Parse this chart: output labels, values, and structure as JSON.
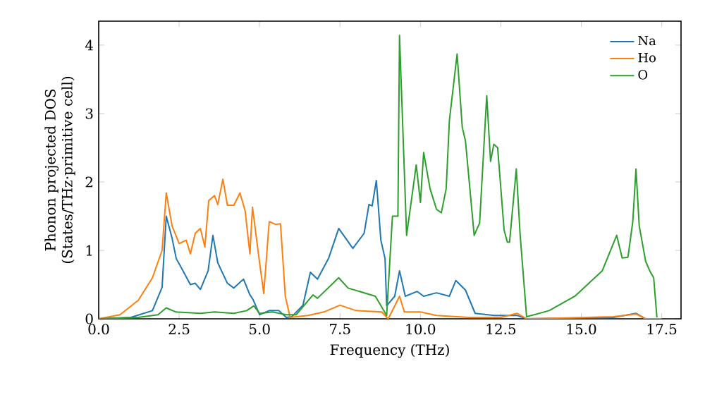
{
  "chart_data": {
    "type": "line",
    "xlabel": "Frequency (THz)",
    "ylabel": "Phonon projected DOS (States/THz·primitive cell)",
    "xlim": [
      0,
      18.1
    ],
    "ylim": [
      0,
      4.35
    ],
    "xticks": [
      {
        "value": 0,
        "label": "0.0"
      },
      {
        "value": 2.5,
        "label": "2.5"
      },
      {
        "value": 5,
        "label": "5.0"
      },
      {
        "value": 7.5,
        "label": "7.5"
      },
      {
        "value": 10,
        "label": "10.0"
      },
      {
        "value": 12.5,
        "label": "12.5"
      },
      {
        "value": 15,
        "label": "15.0"
      },
      {
        "value": 17.5,
        "label": "17.5"
      }
    ],
    "yticks": [
      0,
      1,
      2,
      3,
      4
    ],
    "legend": "top right",
    "series": [
      {
        "name": "Na",
        "color": "#1f77b4",
        "x": [
          0,
          1.0,
          1.67,
          1.97,
          2.1,
          2.28,
          2.41,
          2.6,
          2.85,
          3.0,
          3.16,
          3.4,
          3.55,
          3.7,
          4.0,
          4.2,
          4.5,
          4.7,
          4.8,
          5.0,
          5.3,
          5.6,
          5.83,
          6.0,
          6.35,
          6.58,
          6.8,
          7.15,
          7.46,
          7.9,
          8.25,
          8.4,
          8.5,
          8.63,
          8.77,
          8.9,
          8.95,
          9.2,
          9.35,
          9.53,
          9.9,
          10.1,
          10.5,
          10.9,
          11.1,
          11.4,
          11.7,
          12.3,
          13.0,
          13.3,
          16.0,
          16.7,
          17.0,
          17.5
        ],
        "values": [
          0,
          0.02,
          0.12,
          0.46,
          1.5,
          1.18,
          0.88,
          0.72,
          0.5,
          0.52,
          0.43,
          0.7,
          1.22,
          0.82,
          0.52,
          0.45,
          0.58,
          0.35,
          0.28,
          0.06,
          0.12,
          0.12,
          0.02,
          0.03,
          0.2,
          0.68,
          0.58,
          0.89,
          1.32,
          1.03,
          1.25,
          1.67,
          1.65,
          2.02,
          1.15,
          0.88,
          0.19,
          0.33,
          0.7,
          0.33,
          0.4,
          0.33,
          0.38,
          0.33,
          0.56,
          0.42,
          0.08,
          0.05,
          0.05,
          0.0,
          0.02,
          0.08,
          0,
          0
        ]
      },
      {
        "name": "Ho",
        "color": "#ff7f0e",
        "x": [
          0,
          0.66,
          1.23,
          1.67,
          1.97,
          2.1,
          2.28,
          2.5,
          2.72,
          2.85,
          3.0,
          3.16,
          3.3,
          3.42,
          3.6,
          3.7,
          3.86,
          4.0,
          4.2,
          4.39,
          4.55,
          4.7,
          4.78,
          5.0,
          5.13,
          5.3,
          5.5,
          5.65,
          5.8,
          5.95,
          6.5,
          7.0,
          7.5,
          8.0,
          8.8,
          9.0,
          9.35,
          9.5,
          10.0,
          10.5,
          11.5,
          12.5,
          13.0,
          13.3,
          16.0,
          16.7,
          17.0,
          17.5
        ],
        "values": [
          0,
          0.06,
          0.27,
          0.6,
          1.0,
          1.84,
          1.36,
          1.1,
          1.15,
          0.95,
          1.25,
          1.32,
          1.05,
          1.73,
          1.8,
          1.67,
          2.04,
          1.66,
          1.66,
          1.84,
          1.58,
          0.95,
          1.63,
          0.82,
          0.37,
          1.42,
          1.38,
          1.39,
          0.33,
          0.02,
          0.05,
          0.1,
          0.2,
          0.12,
          0.1,
          0.0,
          0.33,
          0.1,
          0.1,
          0.05,
          0.02,
          0.02,
          0.08,
          0.0,
          0.03,
          0.07,
          0,
          0
        ]
      },
      {
        "name": "O",
        "color": "#2ca02c",
        "x": [
          0,
          1.23,
          1.84,
          2.1,
          2.4,
          3.16,
          3.6,
          4.2,
          4.6,
          4.82,
          5.0,
          5.4,
          5.83,
          6.14,
          6.66,
          6.8,
          7.46,
          7.75,
          8.6,
          8.95,
          9.13,
          9.3,
          9.35,
          9.57,
          9.87,
          10.0,
          10.1,
          10.3,
          10.5,
          10.65,
          10.8,
          10.9,
          11.14,
          11.3,
          11.4,
          11.67,
          11.84,
          12.06,
          12.18,
          12.28,
          12.4,
          12.6,
          12.7,
          12.77,
          12.98,
          13.1,
          13.3,
          14.0,
          14.8,
          15.65,
          16.1,
          16.27,
          16.45,
          16.6,
          16.7,
          16.8,
          17.0,
          17.15,
          17.25,
          17.35
        ],
        "values": [
          0,
          0.02,
          0.06,
          0.16,
          0.1,
          0.08,
          0.1,
          0.08,
          0.12,
          0.19,
          0.08,
          0.1,
          0.06,
          0.06,
          0.35,
          0.3,
          0.6,
          0.45,
          0.33,
          0.05,
          1.5,
          1.5,
          4.14,
          1.22,
          2.25,
          1.7,
          2.43,
          1.9,
          1.6,
          1.55,
          1.9,
          2.9,
          3.87,
          2.8,
          2.6,
          1.22,
          1.4,
          3.26,
          2.3,
          2.55,
          2.5,
          1.3,
          1.12,
          1.12,
          2.19,
          1.22,
          0.03,
          0.12,
          0.33,
          0.7,
          1.22,
          0.89,
          0.9,
          1.42,
          2.19,
          1.36,
          0.84,
          0.68,
          0.6,
          0.02
        ]
      }
    ]
  }
}
